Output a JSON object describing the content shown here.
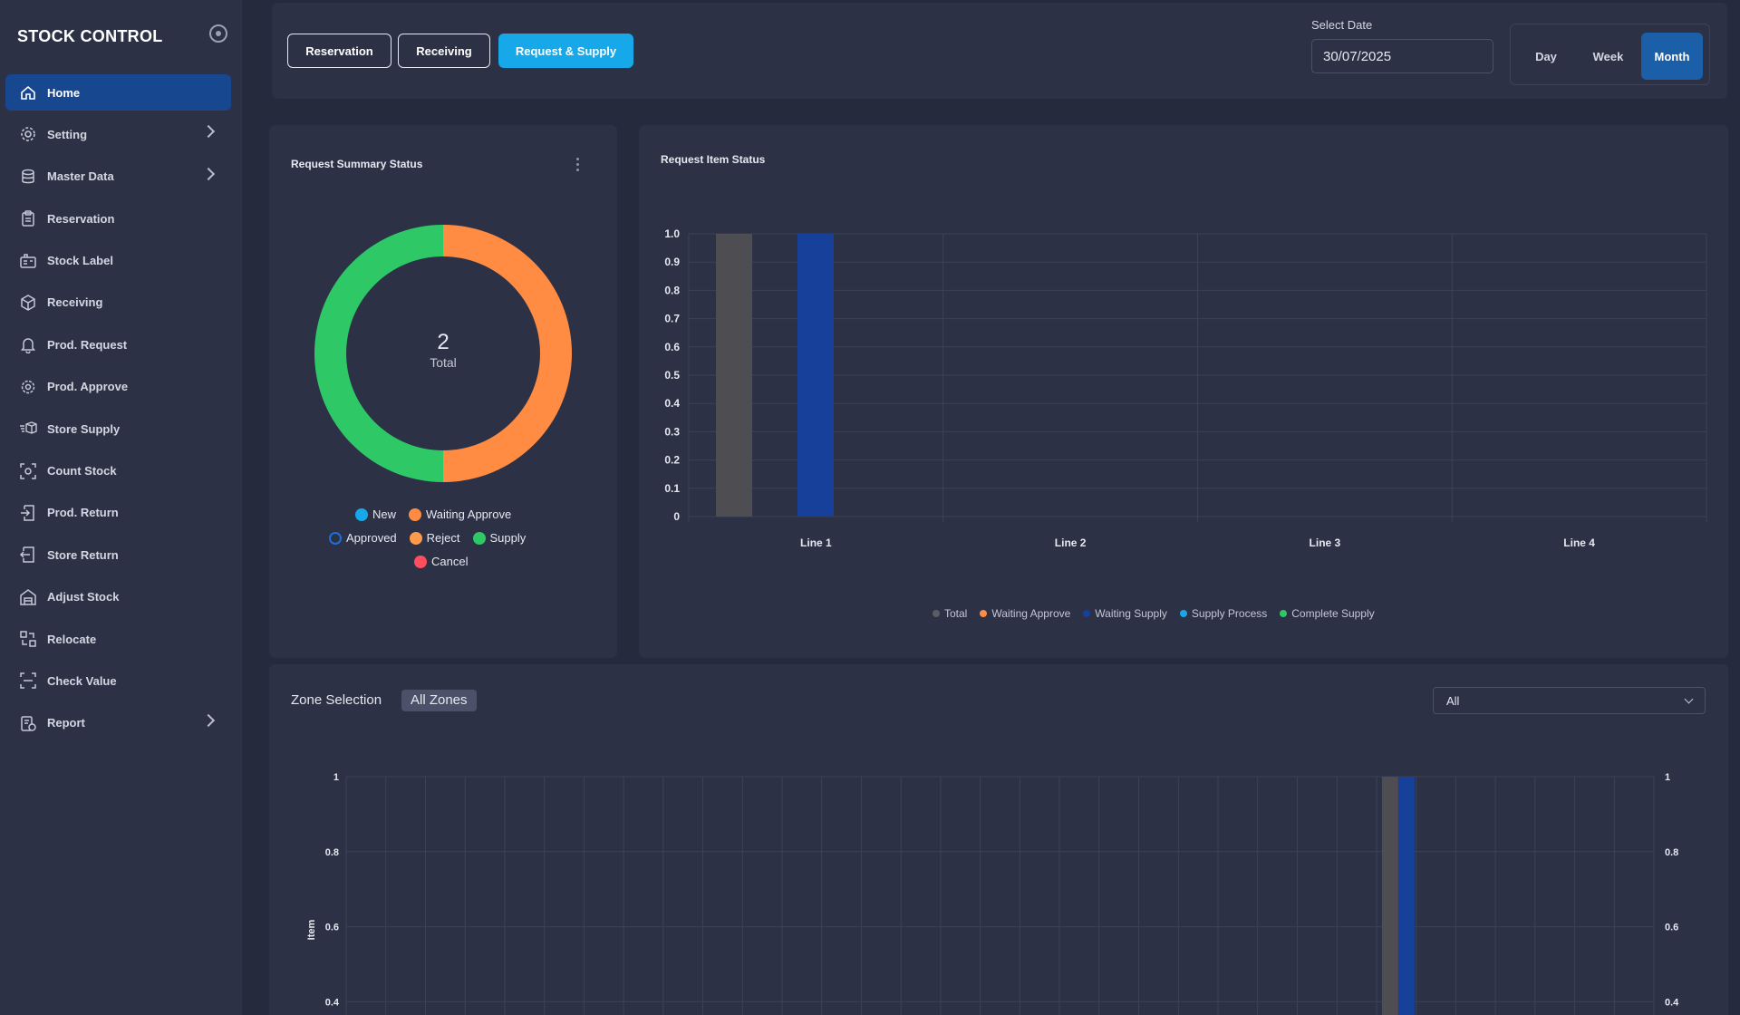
{
  "brand": {
    "title": "STOCK CONTROL"
  },
  "sidebar": {
    "items": [
      {
        "label": "Home",
        "icon": "home-icon",
        "active": true,
        "has_children": false
      },
      {
        "label": "Setting",
        "icon": "gear-icon",
        "active": false,
        "has_children": true
      },
      {
        "label": "Master Data",
        "icon": "database-icon",
        "active": false,
        "has_children": true
      },
      {
        "label": "Reservation",
        "icon": "clipboard-icon",
        "active": false,
        "has_children": false
      },
      {
        "label": "Stock Label",
        "icon": "label-icon",
        "active": false,
        "has_children": false
      },
      {
        "label": "Receiving",
        "icon": "box-receive-icon",
        "active": false,
        "has_children": false
      },
      {
        "label": "Prod. Request",
        "icon": "bell-icon",
        "active": false,
        "has_children": false
      },
      {
        "label": "Prod. Approve",
        "icon": "approve-gear-icon",
        "active": false,
        "has_children": false
      },
      {
        "label": "Store Supply",
        "icon": "supply-icon",
        "active": false,
        "has_children": false
      },
      {
        "label": "Count Stock",
        "icon": "scan-icon",
        "active": false,
        "has_children": false
      },
      {
        "label": "Prod. Return",
        "icon": "return-icon",
        "active": false,
        "has_children": false
      },
      {
        "label": "Store Return",
        "icon": "store-return-icon",
        "active": false,
        "has_children": false
      },
      {
        "label": "Adjust Stock",
        "icon": "building-icon",
        "active": false,
        "has_children": false
      },
      {
        "label": "Relocate",
        "icon": "relocate-icon",
        "active": false,
        "has_children": false
      },
      {
        "label": "Check Value",
        "icon": "check-value-icon",
        "active": false,
        "has_children": false
      },
      {
        "label": "Report",
        "icon": "report-icon",
        "active": false,
        "has_children": true
      }
    ]
  },
  "header": {
    "tabs": [
      "Reservation",
      "Receiving",
      "Request & Supply"
    ],
    "active_tab": "Request & Supply",
    "date_label": "Select Date",
    "date_value": "30/07/2025",
    "periods": [
      "Day",
      "Week",
      "Month"
    ],
    "active_period": "Month"
  },
  "summary": {
    "title": "Request Summary Status",
    "total_value": "2",
    "total_label": "Total",
    "legend": [
      {
        "label": "New",
        "color": "#17a8ea",
        "outline": false
      },
      {
        "label": "Waiting Approve",
        "color": "#ff8c42",
        "outline": false
      },
      {
        "label": "Approved",
        "color": "#1e6fd9",
        "outline": true
      },
      {
        "label": "Reject",
        "color": "#ff9a4a",
        "outline": false
      },
      {
        "label": "Supply",
        "color": "#2ec866",
        "outline": false
      },
      {
        "label": "Cancel",
        "color": "#ff4d5e",
        "outline": false
      }
    ]
  },
  "item_status": {
    "title": "Request Item Status",
    "legend": [
      {
        "label": "Total",
        "color": "#5a5d66"
      },
      {
        "label": "Waiting Approve",
        "color": "#ff8c42"
      },
      {
        "label": "Waiting Supply",
        "color": "#16409a"
      },
      {
        "label": "Supply Process",
        "color": "#17a8ea"
      },
      {
        "label": "Complete Supply",
        "color": "#2ec866"
      }
    ]
  },
  "zone": {
    "title": "Zone Selection",
    "chip": "All Zones",
    "select_value": "All",
    "y_axis_label": "Item"
  },
  "chart_data": [
    {
      "type": "pie",
      "title": "Request Summary Status",
      "categories": [
        "Waiting Approve",
        "Supply"
      ],
      "values": [
        1,
        1
      ],
      "colors": [
        "#ff8c42",
        "#2ec866"
      ],
      "total": 2
    },
    {
      "type": "bar",
      "title": "Request Item Status",
      "categories": [
        "Line 1",
        "Line 2",
        "Line 3",
        "Line 4"
      ],
      "series": [
        {
          "name": "Total",
          "color": "#4d4d52",
          "values": [
            1,
            0,
            0,
            0
          ]
        },
        {
          "name": "Waiting Supply",
          "color": "#16409a",
          "values": [
            1,
            0,
            0,
            0
          ]
        }
      ],
      "ylim": [
        0,
        1
      ],
      "yticks": [
        "0",
        "0.1",
        "0.2",
        "0.3",
        "0.4",
        "0.5",
        "0.6",
        "0.7",
        "0.8",
        "0.9",
        "1.0"
      ]
    },
    {
      "type": "bar",
      "title": "",
      "ylabel": "Item",
      "category_count": 33,
      "highlight_category_index": 26,
      "series": [
        {
          "name": "Total",
          "color": "#4d4d52",
          "value": 1
        },
        {
          "name": "Waiting Supply",
          "color": "#16409a",
          "value": 1
        }
      ],
      "ylim": [
        0,
        1
      ],
      "yticks_visible": [
        "0.4",
        "0.6",
        "0.8",
        "1"
      ]
    }
  ]
}
